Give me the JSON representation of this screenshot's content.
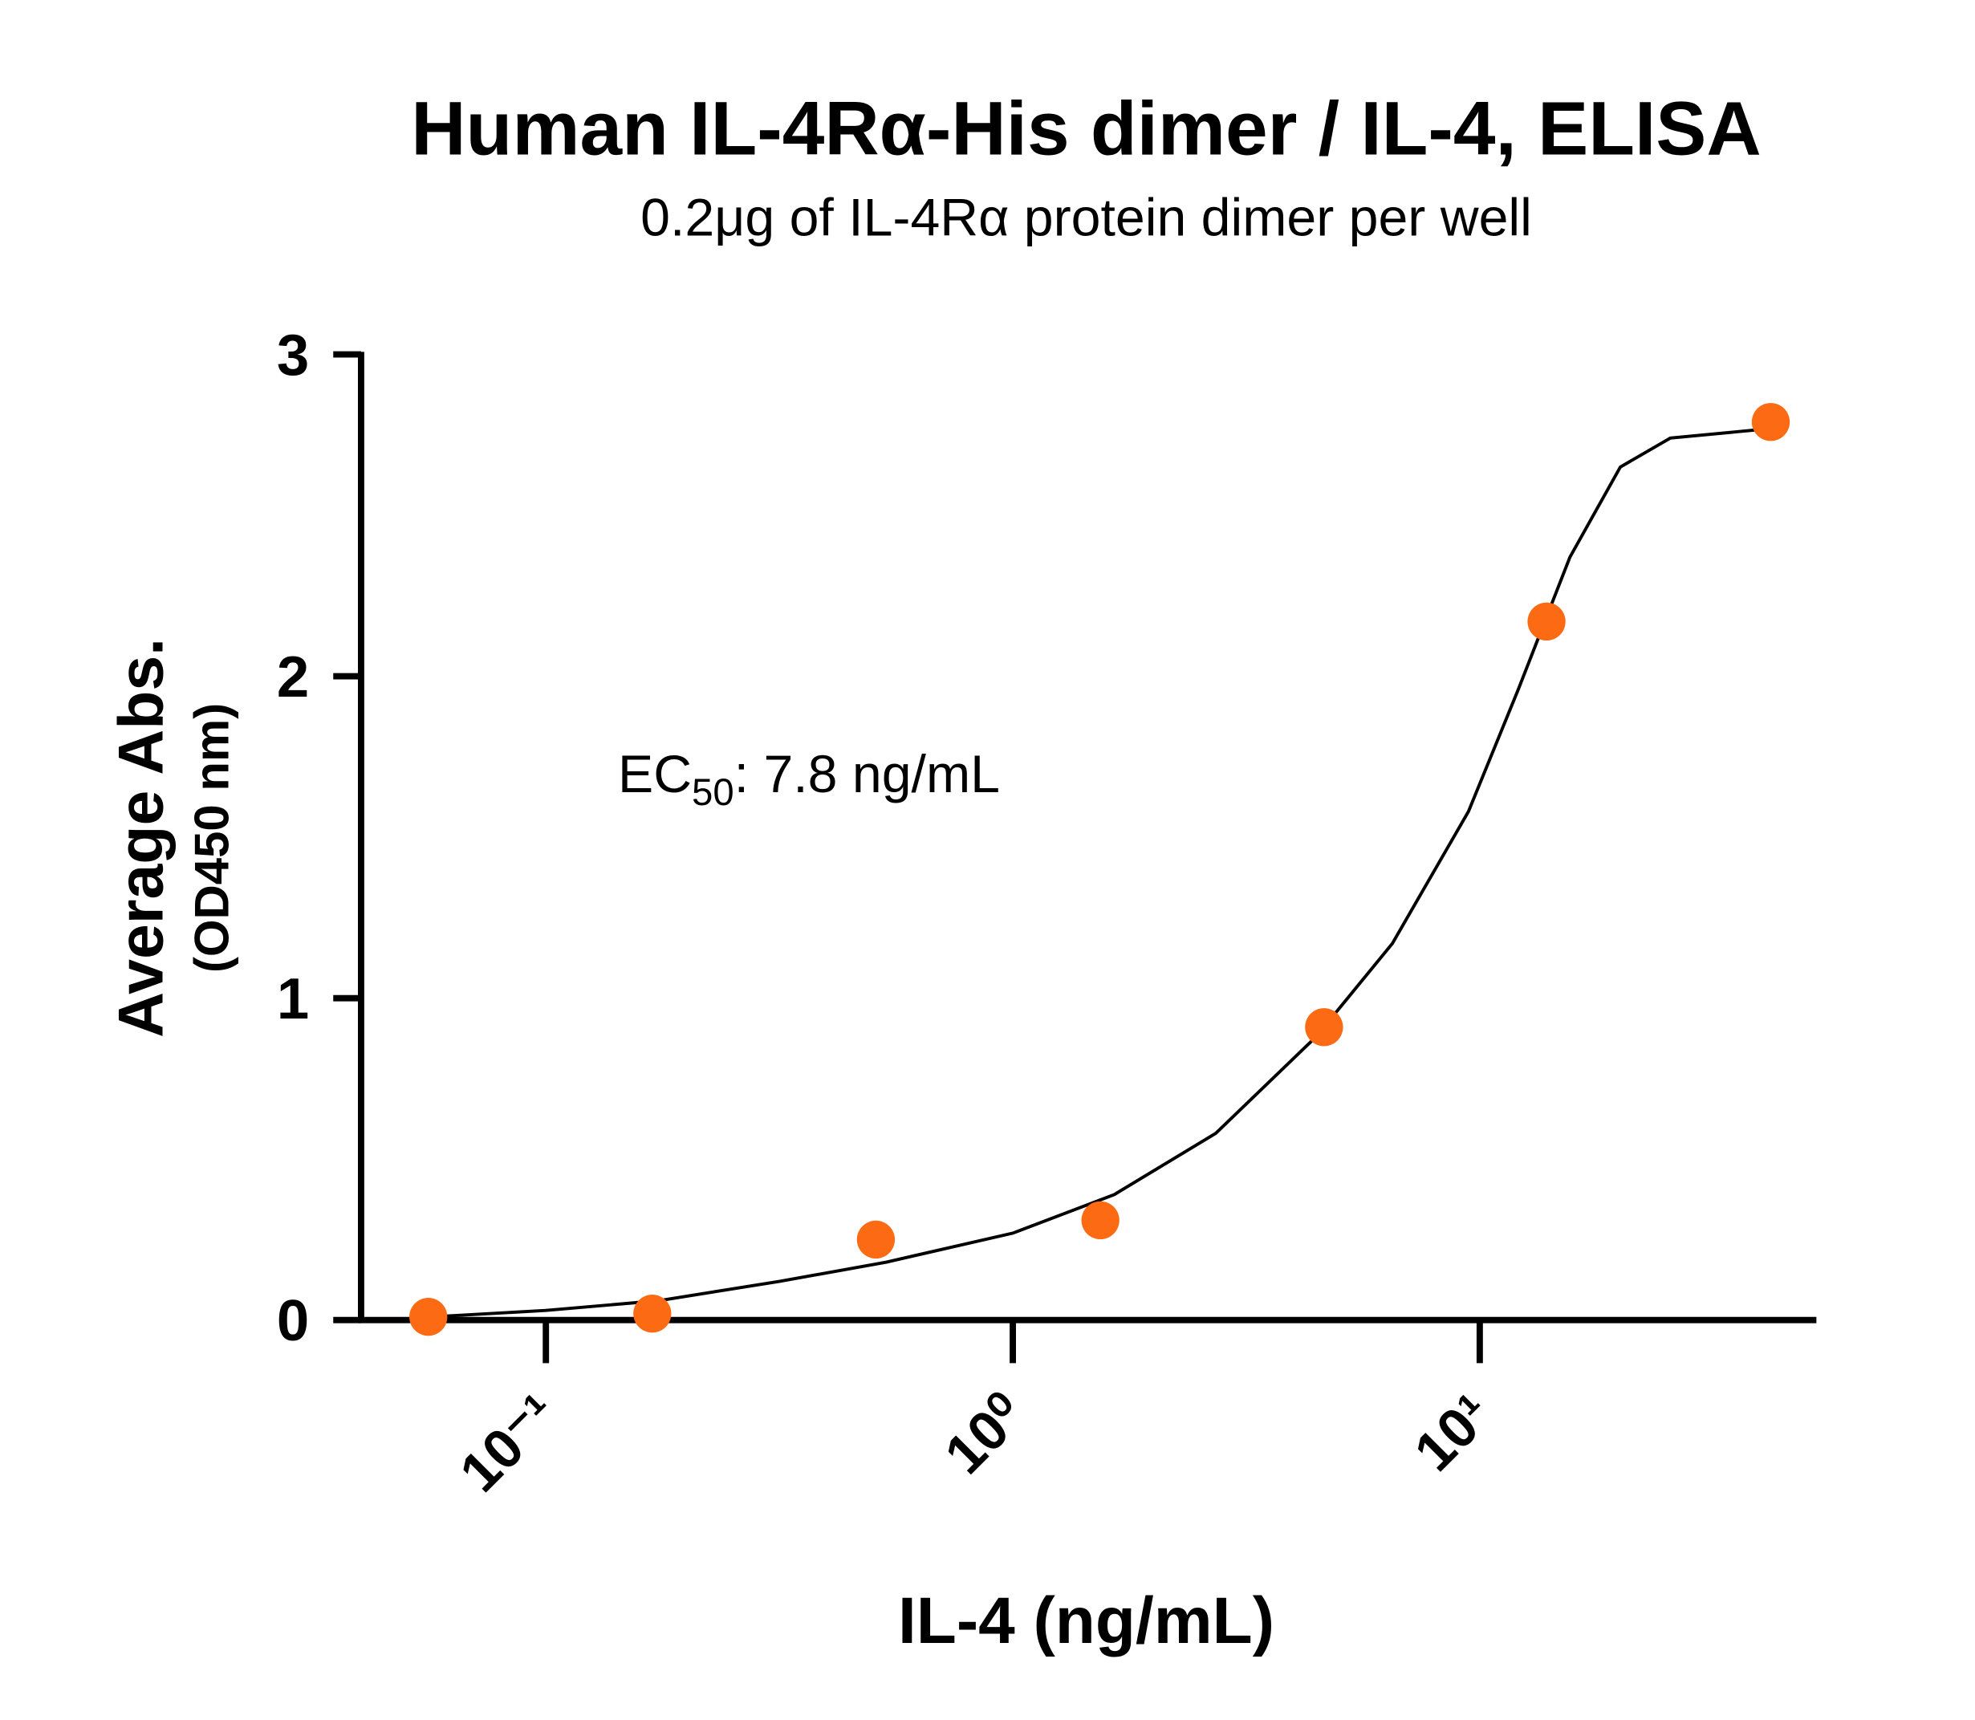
{
  "chart_data": {
    "type": "scatter",
    "title": "Human IL-4Rα-His dimer / IL-4, ELISA",
    "subtitle": "0.2μg of IL-4Rα protein dimer per well",
    "annotation": [
      "EC",
      "50",
      ": 7.8 ng/mL"
    ],
    "x_label": "IL-4 (ng/mL)",
    "y_label": [
      "Average Abs.",
      "(OD450 nm)"
    ],
    "xscale": "log",
    "xlim": [
      0.0402,
      52.6
    ],
    "xticks": [
      {
        "value": 0.1,
        "label": "10⁻¹"
      },
      {
        "value": 1,
        "label": "10⁰"
      },
      {
        "value": 10,
        "label": "10¹"
      }
    ],
    "ylim": [
      0,
      3
    ],
    "yticks": [
      0,
      1,
      2,
      3
    ],
    "series": [
      {
        "type": "line",
        "color": "#000000",
        "x": [
          0.057,
          0.1,
          0.174,
          0.316,
          0.536,
          1.0,
          1.65,
          2.72,
          4.46,
          6.5,
          9.46,
          12.1,
          15.6,
          20,
          25.6,
          42.3
        ],
        "values": [
          0.01,
          0.03,
          0.06,
          0.12,
          0.18,
          0.27,
          0.39,
          0.58,
          0.88,
          1.17,
          1.58,
          1.96,
          2.37,
          2.65,
          2.74,
          2.77
        ]
      },
      {
        "type": "scatter",
        "color": "#fc6a14",
        "x": [
          0.056,
          0.169,
          0.509,
          1.54,
          4.64,
          13.9,
          42
        ],
        "values": [
          0.01,
          0.02,
          0.25,
          0.31,
          0.91,
          2.17,
          2.79
        ]
      }
    ]
  }
}
